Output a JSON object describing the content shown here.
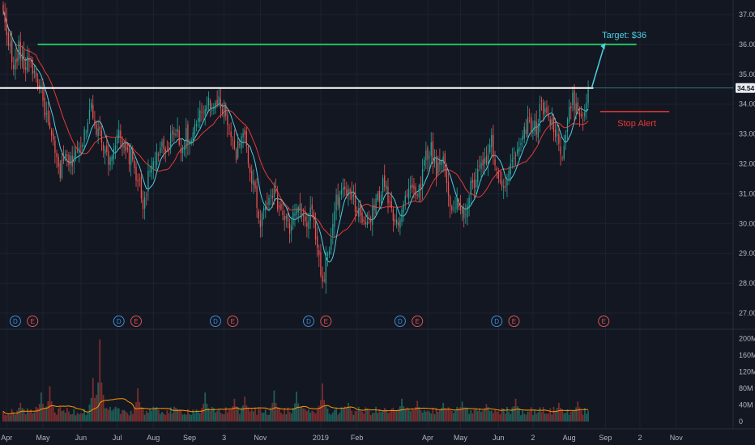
{
  "chart_data": {
    "type": "candlestick",
    "price_axis": {
      "ticks": [
        "37.00",
        "36.00",
        "35.00",
        "34.00",
        "33.00",
        "32.00",
        "31.00",
        "30.00",
        "29.00",
        "28.00",
        "27.00"
      ],
      "tick_values": [
        37,
        36,
        35,
        34,
        33,
        32,
        31,
        30,
        29,
        28,
        27
      ],
      "ylim": [
        26.5,
        37.6
      ],
      "current_price_label": "34.54",
      "current_price": 34.54
    },
    "volume_axis": {
      "ticks": [
        "200M",
        "160M",
        "120M",
        "80M",
        "40M",
        "0"
      ],
      "tick_values": [
        200,
        160,
        120,
        80,
        40,
        0
      ],
      "unit": "M"
    },
    "time_axis": {
      "labels": [
        {
          "text": "Apr",
          "i": 2
        },
        {
          "text": "May",
          "i": 23
        },
        {
          "text": "Jun",
          "i": 45
        },
        {
          "text": "Jul",
          "i": 66
        },
        {
          "text": "Aug",
          "i": 87
        },
        {
          "text": "Sep",
          "i": 108
        },
        {
          "text": "3",
          "i": 128
        },
        {
          "text": "Nov",
          "i": 149
        },
        {
          "text": "2019",
          "i": 184
        },
        {
          "text": "Feb",
          "i": 205
        },
        {
          "text": "Apr",
          "i": 246
        },
        {
          "text": "May",
          "i": 265
        },
        {
          "text": "Jun",
          "i": 287
        },
        {
          "text": "2",
          "i": 307
        },
        {
          "text": "Aug",
          "i": 328
        },
        {
          "text": "Sep",
          "i": 349
        },
        {
          "text": "2",
          "i": 369
        },
        {
          "text": "Nov",
          "i": 390
        }
      ]
    },
    "price_keypoints": [
      [
        0,
        37.0
      ],
      [
        3,
        36.2
      ],
      [
        6,
        35.1
      ],
      [
        9,
        35.9
      ],
      [
        12,
        35.2
      ],
      [
        15,
        35.6
      ],
      [
        18,
        35.0
      ],
      [
        21,
        34.6
      ],
      [
        26,
        33.3
      ],
      [
        30,
        32.3
      ],
      [
        33,
        31.7
      ],
      [
        36,
        32.2
      ],
      [
        39,
        32.0
      ],
      [
        42,
        32.5
      ],
      [
        45,
        32.4
      ],
      [
        48,
        33.3
      ],
      [
        51,
        34.0
      ],
      [
        55,
        33.0
      ],
      [
        58,
        32.7
      ],
      [
        61,
        32.2
      ],
      [
        64,
        32.6
      ],
      [
        67,
        32.9
      ],
      [
        70,
        32.4
      ],
      [
        74,
        32.2
      ],
      [
        78,
        31.5
      ],
      [
        81,
        30.6
      ],
      [
        84,
        31.5
      ],
      [
        87,
        32.0
      ],
      [
        91,
        32.6
      ],
      [
        94,
        32.2
      ],
      [
        97,
        32.8
      ],
      [
        100,
        33.2
      ],
      [
        103,
        32.4
      ],
      [
        106,
        33.0
      ],
      [
        109,
        32.7
      ],
      [
        112,
        33.3
      ],
      [
        116,
        33.8
      ],
      [
        119,
        34.2
      ],
      [
        122,
        33.9
      ],
      [
        125,
        34.0
      ],
      [
        128,
        33.9
      ],
      [
        131,
        33.3
      ],
      [
        134,
        32.3
      ],
      [
        137,
        32.6
      ],
      [
        140,
        33.0
      ],
      [
        143,
        31.8
      ],
      [
        146,
        31.0
      ],
      [
        149,
        30.1
      ],
      [
        152,
        30.6
      ],
      [
        155,
        31.2
      ],
      [
        158,
        30.8
      ],
      [
        162,
        30.3
      ],
      [
        166,
        29.8
      ],
      [
        170,
        30.6
      ],
      [
        173,
        30.2
      ],
      [
        176,
        30.0
      ],
      [
        179,
        30.4
      ],
      [
        182,
        29.3
      ],
      [
        185,
        27.9
      ],
      [
        187,
        28.8
      ],
      [
        190,
        29.4
      ],
      [
        193,
        30.7
      ],
      [
        197,
        31.1
      ],
      [
        201,
        30.9
      ],
      [
        205,
        30.5
      ],
      [
        209,
        29.9
      ],
      [
        213,
        30.2
      ],
      [
        217,
        30.8
      ],
      [
        221,
        31.4
      ],
      [
        225,
        30.4
      ],
      [
        229,
        30.1
      ],
      [
        233,
        30.9
      ],
      [
        237,
        31.2
      ],
      [
        241,
        31.1
      ],
      [
        245,
        32.3
      ],
      [
        248,
        32.5
      ],
      [
        251,
        31.8
      ],
      [
        255,
        32.2
      ],
      [
        258,
        31.0
      ],
      [
        261,
        30.4
      ],
      [
        264,
        30.7
      ],
      [
        267,
        30.2
      ],
      [
        271,
        31.2
      ],
      [
        275,
        31.6
      ],
      [
        279,
        32.1
      ],
      [
        283,
        32.7
      ],
      [
        287,
        31.5
      ],
      [
        290,
        31.0
      ],
      [
        293,
        32.0
      ],
      [
        297,
        32.4
      ],
      [
        301,
        33.0
      ],
      [
        305,
        33.4
      ],
      [
        309,
        33.2
      ],
      [
        312,
        34.0
      ],
      [
        315,
        33.8
      ],
      [
        318,
        33.3
      ],
      [
        321,
        33.0
      ],
      [
        324,
        32.0
      ],
      [
        327,
        33.4
      ],
      [
        330,
        34.2
      ],
      [
        334,
        33.7
      ],
      [
        336,
        33.6
      ],
      [
        339,
        34.5
      ]
    ],
    "num_bars": 340,
    "volume_baseline_m": 30,
    "volume_spikes": [
      {
        "i": 10,
        "v": 45
      },
      {
        "i": 22,
        "v": 70
      },
      {
        "i": 27,
        "v": 85
      },
      {
        "i": 52,
        "v": 105
      },
      {
        "i": 56,
        "v": 198
      },
      {
        "i": 78,
        "v": 80
      },
      {
        "i": 117,
        "v": 70
      },
      {
        "i": 134,
        "v": 55
      },
      {
        "i": 140,
        "v": 60
      },
      {
        "i": 157,
        "v": 75
      },
      {
        "i": 170,
        "v": 72
      },
      {
        "i": 185,
        "v": 92
      },
      {
        "i": 200,
        "v": 45
      },
      {
        "i": 231,
        "v": 55
      },
      {
        "i": 240,
        "v": 50
      },
      {
        "i": 255,
        "v": 45
      },
      {
        "i": 266,
        "v": 48
      },
      {
        "i": 280,
        "v": 42
      },
      {
        "i": 297,
        "v": 55
      },
      {
        "i": 322,
        "v": 45
      },
      {
        "i": 333,
        "v": 48
      }
    ],
    "events": [
      {
        "type": "D",
        "i": 7
      },
      {
        "type": "E",
        "i": 17
      },
      {
        "type": "D",
        "i": 67
      },
      {
        "type": "E",
        "i": 77
      },
      {
        "type": "D",
        "i": 123
      },
      {
        "type": "E",
        "i": 133
      },
      {
        "type": "D",
        "i": 177
      },
      {
        "type": "E",
        "i": 187
      },
      {
        "type": "D",
        "i": 230
      },
      {
        "type": "E",
        "i": 240
      },
      {
        "type": "D",
        "i": 286
      },
      {
        "type": "E",
        "i": 296
      },
      {
        "type": "E",
        "i": 348
      }
    ],
    "annotations": {
      "target": {
        "label": "Target: $36",
        "price": 36.0
      },
      "resistance": {
        "price": 34.54
      },
      "stop": {
        "label": "Stop Alert",
        "price": 33.75
      }
    },
    "colors": {
      "background": "#131722",
      "up": "#26a69a",
      "down": "#ef5350",
      "ma_fast": "#4dd0e1",
      "ma_slow": "#e53935",
      "target_line": "#22c55e",
      "resistance_line": "#ffffff",
      "arrow": "#4dd0e1",
      "stop": "#e53935",
      "vol_ma": "#ff9800",
      "price_label_bg": "#e8ecf1"
    }
  }
}
